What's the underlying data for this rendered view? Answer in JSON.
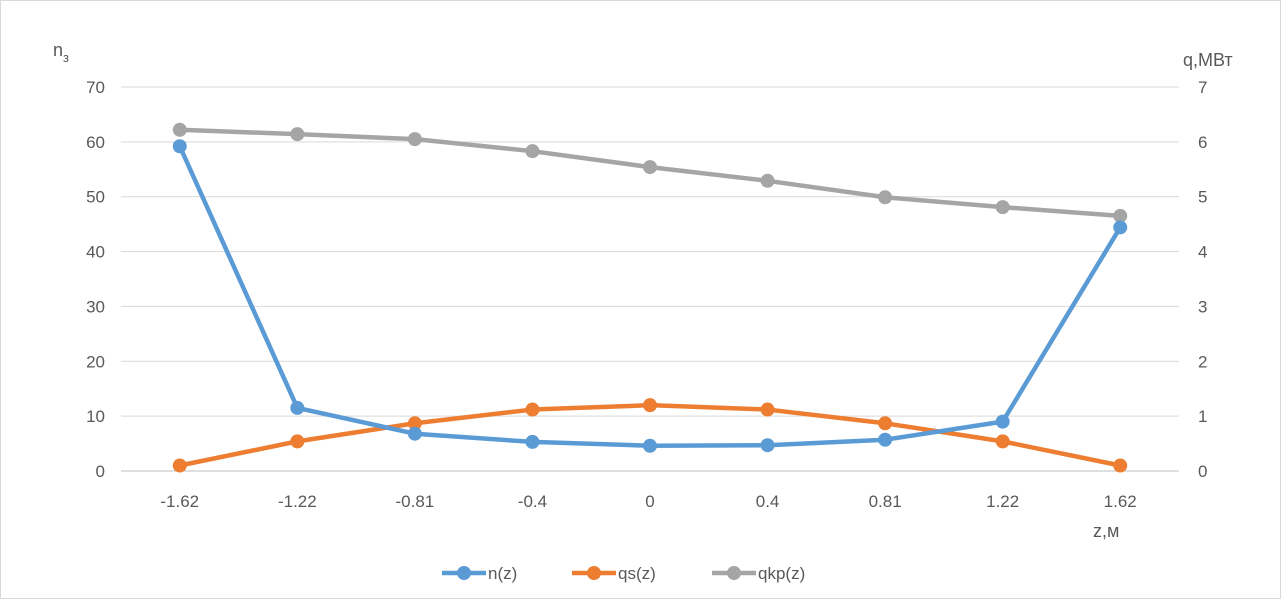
{
  "chart_data": {
    "type": "line",
    "categories": [
      "-1.62",
      "-1.22",
      "-0.81",
      "-0.4",
      "0",
      "0.4",
      "0.81",
      "1.22",
      "1.62"
    ],
    "y_left": {
      "label_base": "n",
      "label_sub": "з",
      "range": [
        0,
        70
      ],
      "ticks": [
        "0",
        "10",
        "20",
        "30",
        "40",
        "50",
        "60",
        "70"
      ]
    },
    "y_right": {
      "label": "q,МВт",
      "range": [
        0,
        7
      ],
      "ticks": [
        "0",
        "1",
        "2",
        "3",
        "4",
        "5",
        "6",
        "7"
      ]
    },
    "xlabel": "z,м",
    "grid": true,
    "legend_position": "bottom",
    "series": [
      {
        "name": "n(z)",
        "axis": "left",
        "color": "#5b9bd5",
        "values": [
          59.2,
          11.5,
          6.8,
          5.3,
          4.6,
          4.7,
          5.7,
          9.0,
          44.4
        ]
      },
      {
        "name": "qs(z)",
        "axis": "right",
        "color": "#ed7d31",
        "values": [
          0.1,
          0.54,
          0.87,
          1.12,
          1.2,
          1.12,
          0.87,
          0.54,
          0.1
        ]
      },
      {
        "name": "qkp(z)",
        "axis": "right",
        "color": "#a5a5a5",
        "values": [
          6.22,
          6.14,
          6.05,
          5.83,
          5.54,
          5.29,
          4.99,
          4.81,
          4.65
        ]
      }
    ]
  }
}
